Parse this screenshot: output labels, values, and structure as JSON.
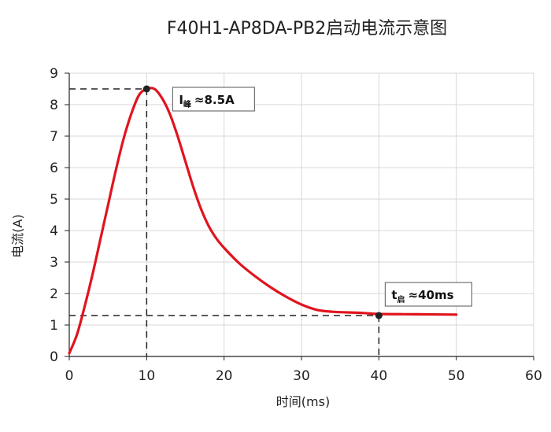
{
  "chart_data": {
    "type": "line",
    "title": "F40H1-AP8DA-PB2启动电流示意图",
    "xlabel": "时间(ms)",
    "ylabel": "电流(A)",
    "xlim": [
      0,
      60
    ],
    "ylim": [
      0,
      9
    ],
    "x_ticks": [
      "0",
      "10",
      "20",
      "30",
      "40",
      "50",
      "60"
    ],
    "y_ticks": [
      "0",
      "1",
      "2",
      "3",
      "4",
      "5",
      "6",
      "7",
      "8",
      "9"
    ],
    "grid": true,
    "series": [
      {
        "color": "#e0141e",
        "x": [
          0,
          1,
          2,
          3,
          4,
          5,
          6,
          7,
          8,
          9,
          10,
          11,
          12,
          13,
          14,
          15,
          16,
          17,
          18,
          19,
          20,
          22,
          24,
          26,
          28,
          30,
          32,
          34,
          36,
          38,
          40,
          45,
          50
        ],
        "y": [
          0.1,
          0.7,
          1.6,
          2.6,
          3.7,
          4.8,
          5.9,
          6.9,
          7.7,
          8.3,
          8.5,
          8.5,
          8.2,
          7.7,
          7.0,
          6.2,
          5.4,
          4.7,
          4.15,
          3.75,
          3.45,
          2.95,
          2.55,
          2.2,
          1.9,
          1.65,
          1.48,
          1.42,
          1.4,
          1.38,
          1.35,
          1.34,
          1.33
        ]
      }
    ],
    "annotations": [
      {
        "x": 10,
        "y": 8.5,
        "main": "I",
        "sub": "峰",
        "text": "≈8.5A"
      },
      {
        "x": 40,
        "y": 1.3,
        "main": "t",
        "sub": "启",
        "text": "≈40ms"
      }
    ]
  }
}
